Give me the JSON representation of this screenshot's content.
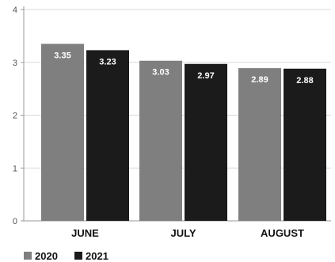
{
  "chart_data": {
    "type": "bar",
    "categories": [
      "JUNE",
      "JULY",
      "AUGUST"
    ],
    "series": [
      {
        "name": "2020",
        "values": [
          3.35,
          3.03,
          2.89
        ],
        "color": "#7f7f7f"
      },
      {
        "name": "2021",
        "values": [
          3.23,
          2.97,
          2.88
        ],
        "color": "#1b1b1b"
      }
    ],
    "data_labels": [
      [
        "3.35",
        "3.03",
        "2.89"
      ],
      [
        "3.23",
        "2.97",
        "2.88"
      ]
    ],
    "y_ticks": [
      "0",
      "1",
      "2",
      "3",
      "4"
    ],
    "ylim": [
      0,
      4
    ],
    "grid": true,
    "legend_position": "bottom-left",
    "gridline_color": "#d9d9d9",
    "axis_color": "#999999"
  }
}
